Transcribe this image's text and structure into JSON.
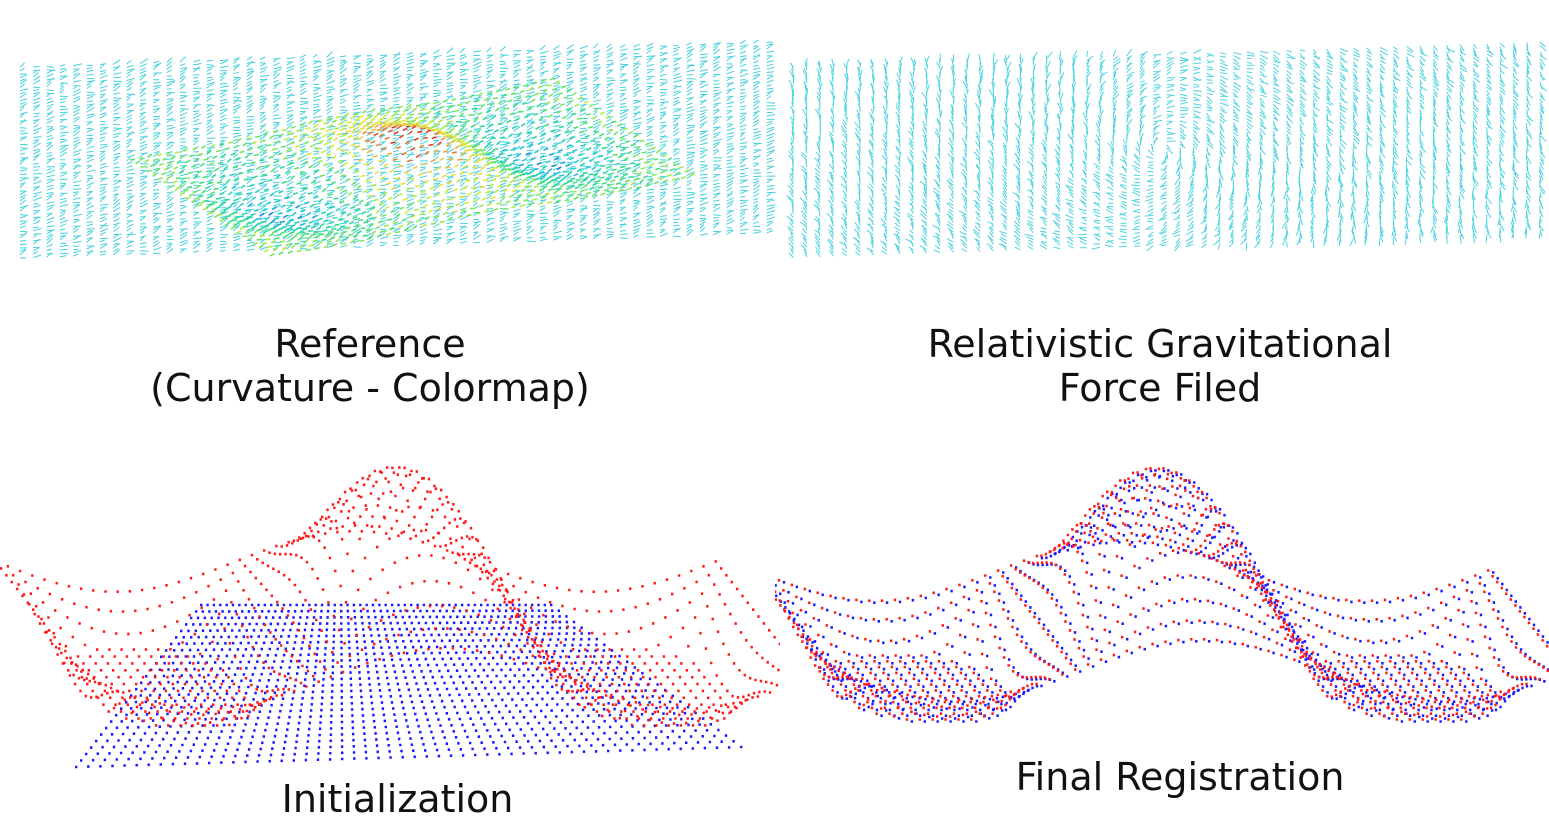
{
  "panels": {
    "reference": {
      "caption_line1": "Reference",
      "caption_line2": "(Curvature - Colormap)",
      "vector_color": "#22c8d8",
      "colormap": [
        "#1a2bd6",
        "#22c8d8",
        "#39e07a",
        "#d8f03a",
        "#f0d040",
        "#e23a2a"
      ]
    },
    "force_field": {
      "caption_line1": "Relativistic Gravitational",
      "caption_line2": "Force Filed",
      "vector_color": "#22c8d8"
    },
    "initialization": {
      "caption_line1": "Initialization",
      "target_color": "#ff1a1a",
      "source_color": "#1a1aff"
    },
    "final_registration": {
      "caption_line1": "Final Registration",
      "target_color": "#ff1a1a",
      "source_color": "#1a1aff"
    }
  }
}
